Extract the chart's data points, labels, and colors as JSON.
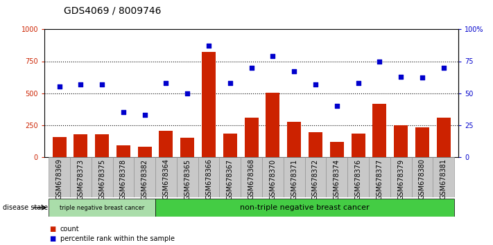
{
  "title": "GDS4069 / 8009746",
  "samples": [
    "GSM678369",
    "GSM678373",
    "GSM678375",
    "GSM678378",
    "GSM678382",
    "GSM678364",
    "GSM678365",
    "GSM678366",
    "GSM678367",
    "GSM678368",
    "GSM678370",
    "GSM678371",
    "GSM678372",
    "GSM678374",
    "GSM678376",
    "GSM678377",
    "GSM678379",
    "GSM678380",
    "GSM678381"
  ],
  "counts": [
    155,
    175,
    175,
    90,
    80,
    205,
    150,
    825,
    185,
    305,
    505,
    275,
    195,
    115,
    185,
    415,
    250,
    230,
    305
  ],
  "percentiles": [
    55,
    57,
    57,
    35,
    33,
    58,
    50,
    87,
    58,
    70,
    79,
    67,
    57,
    40,
    58,
    75,
    63,
    62,
    70
  ],
  "group1_count": 5,
  "group1_label": "triple negative breast cancer",
  "group2_label": "non-triple negative breast cancer",
  "group1_color": "#aaddaa",
  "group2_color": "#44cc44",
  "bar_color": "#cc2200",
  "dot_color": "#0000cc",
  "left_axis_color": "#cc2200",
  "right_axis_color": "#0000cc",
  "ylim_left": [
    0,
    1000
  ],
  "ylim_right": [
    0,
    100
  ],
  "yticks_left": [
    0,
    250,
    500,
    750,
    1000
  ],
  "ytick_labels_left": [
    "0",
    "250",
    "500",
    "750",
    "1000"
  ],
  "yticks_right": [
    0,
    25,
    50,
    75,
    100
  ],
  "ytick_labels_right": [
    "0",
    "25",
    "50",
    "75",
    "100%"
  ],
  "grid_lines": [
    250,
    500,
    750
  ],
  "legend_count_label": "count",
  "legend_pct_label": "percentile rank within the sample",
  "disease_state_label": "disease state",
  "title_fontsize": 10,
  "tick_fontsize": 7,
  "label_fontsize": 7.5
}
